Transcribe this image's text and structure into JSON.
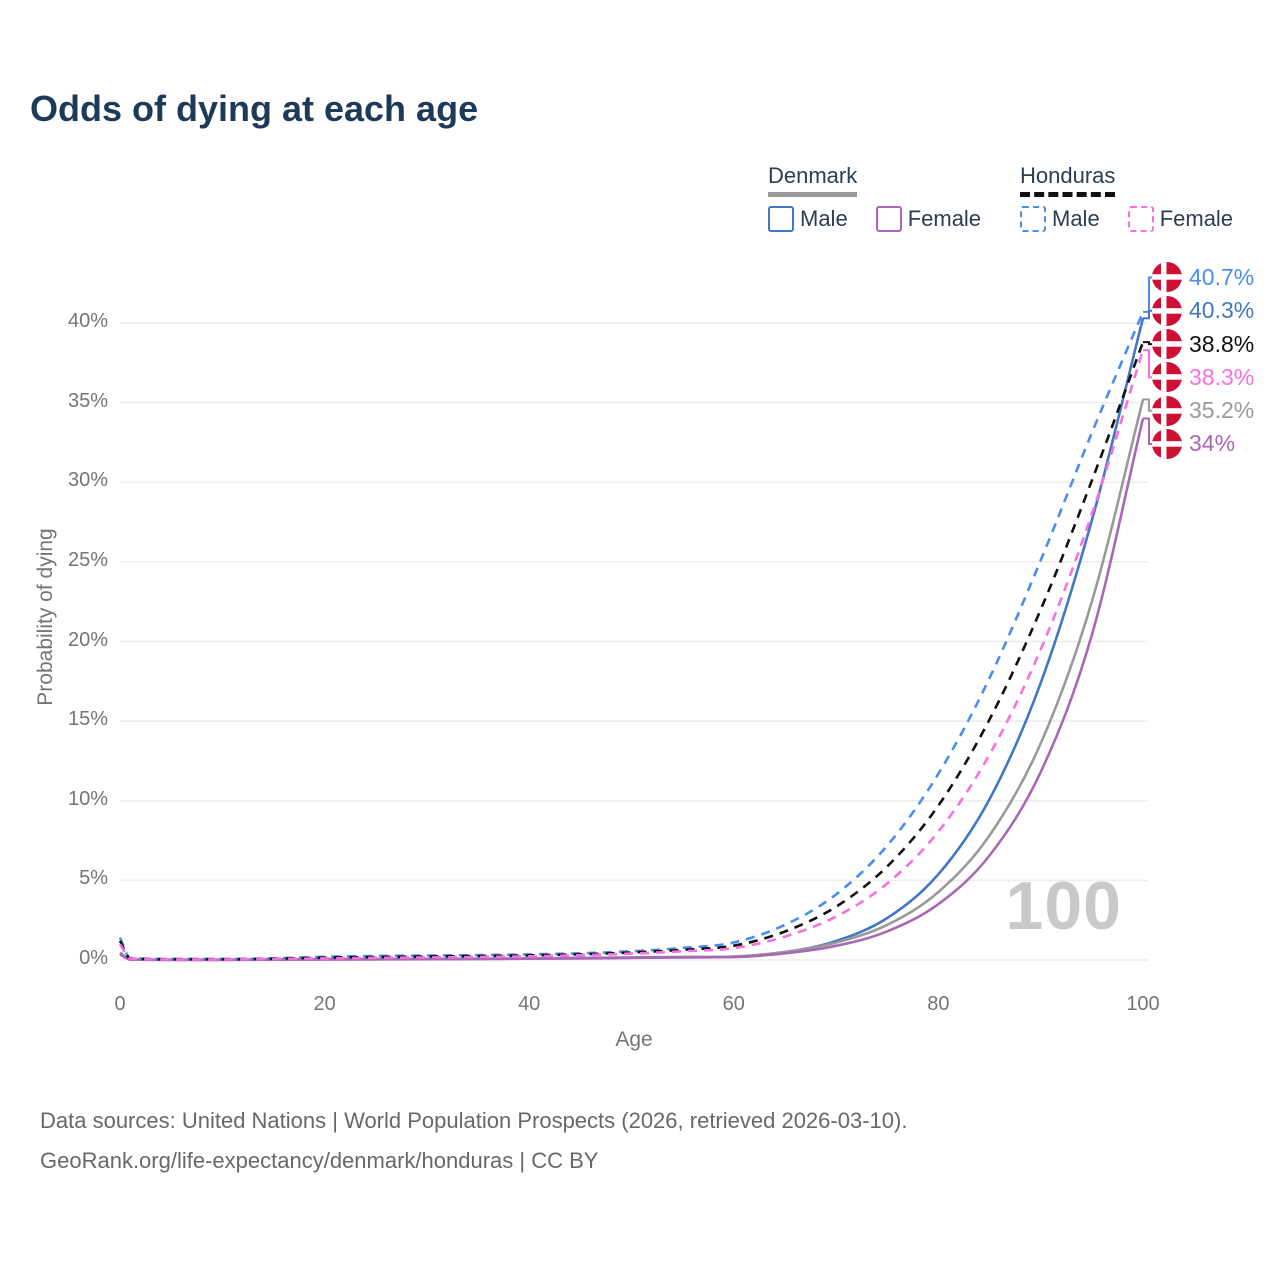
{
  "title": "Odds of dying at each age",
  "legend": {
    "groups": [
      {
        "country": "Denmark",
        "line_style": "solid",
        "underline_color": "#9a9a9a",
        "items": [
          {
            "label": "Male",
            "color": "#4177c6"
          },
          {
            "label": "Female",
            "color": "#aa67b6"
          }
        ]
      },
      {
        "country": "Honduras",
        "line_style": "dashed",
        "underline_color": "#111111",
        "items": [
          {
            "label": "Male",
            "color": "#4a8df2"
          },
          {
            "label": "Female",
            "color": "#fa6fe0"
          }
        ]
      }
    ]
  },
  "chart_data": {
    "type": "line",
    "title": "Odds of dying at each age",
    "xlabel": "Age",
    "ylabel": "Probability of dying",
    "xlim": [
      0,
      100
    ],
    "ylim": [
      0,
      43
    ],
    "grid": "horizontal",
    "x_tick_values": [
      0,
      20,
      40,
      60,
      80,
      100
    ],
    "x_tick_labels": [
      "0",
      "20",
      "40",
      "60",
      "80",
      "100"
    ],
    "y_tick_values": [
      0,
      5,
      10,
      15,
      20,
      25,
      30,
      35,
      40
    ],
    "y_tick_labels": [
      "0%",
      "5%",
      "10%",
      "15%",
      "20%",
      "25%",
      "30%",
      "35%",
      "40%"
    ],
    "watermark": "100",
    "x": [
      0,
      1,
      5,
      10,
      15,
      20,
      25,
      30,
      35,
      40,
      45,
      50,
      55,
      60,
      65,
      70,
      75,
      80,
      85,
      90,
      95,
      100
    ],
    "series": [
      {
        "name": "Honduras male",
        "country": "Honduras",
        "sex": "male",
        "flag": "honduras",
        "color": "#4a8df2",
        "dashed": true,
        "end_label": "40.7%",
        "values": [
          1.4,
          0.12,
          0.06,
          0.06,
          0.1,
          0.2,
          0.25,
          0.28,
          0.31,
          0.35,
          0.42,
          0.55,
          0.76,
          1.1,
          2.21,
          4.12,
          7.19,
          11.7,
          17.7,
          25.1,
          33.1,
          40.7
        ]
      },
      {
        "name": "Denmark male",
        "country": "Denmark",
        "sex": "male",
        "flag": "denmark",
        "color": "#4177c6",
        "dashed": false,
        "end_label": "40.3%",
        "values": [
          0.45,
          0.04,
          0.01,
          0.01,
          0.03,
          0.05,
          0.06,
          0.07,
          0.08,
          0.1,
          0.13,
          0.16,
          0.18,
          0.19,
          0.49,
          1.19,
          2.64,
          5.39,
          10.1,
          17.4,
          27.6,
          40.3
        ]
      },
      {
        "name": "Honduras both sexes",
        "country": "Honduras",
        "sex": "both",
        "flag": "honduras",
        "color": "#111111",
        "dashed": true,
        "end_label": "38.8%",
        "values": [
          1.2,
          0.1,
          0.05,
          0.05,
          0.08,
          0.15,
          0.19,
          0.22,
          0.25,
          0.29,
          0.36,
          0.47,
          0.64,
          0.9,
          1.79,
          3.35,
          5.88,
          9.7,
          15.1,
          22.0,
          30.1,
          38.8
        ]
      },
      {
        "name": "Honduras female",
        "country": "Honduras",
        "sex": "female",
        "flag": "honduras",
        "color": "#fa6fe0",
        "dashed": true,
        "end_label": "38.3%",
        "values": [
          1.0,
          0.09,
          0.04,
          0.04,
          0.06,
          0.1,
          0.13,
          0.16,
          0.19,
          0.23,
          0.3,
          0.4,
          0.55,
          0.75,
          1.47,
          2.73,
          4.81,
          8.07,
          12.9,
          19.5,
          28.0,
          38.3
        ]
      },
      {
        "name": "Denmark both sexes",
        "country": "Denmark",
        "sex": "both",
        "flag": "denmark",
        "color": "#9a9a9a",
        "dashed": false,
        "end_label": "35.2%",
        "values": [
          0.4,
          0.04,
          0.01,
          0.01,
          0.02,
          0.04,
          0.05,
          0.06,
          0.07,
          0.09,
          0.12,
          0.15,
          0.18,
          0.22,
          0.51,
          1.09,
          2.21,
          4.27,
          7.82,
          13.6,
          22.5,
          35.2
        ]
      },
      {
        "name": "Denmark female",
        "country": "Denmark",
        "sex": "female",
        "flag": "denmark",
        "color": "#aa67b6",
        "dashed": false,
        "end_label": "34%",
        "values": [
          0.35,
          0.03,
          0.01,
          0.01,
          0.02,
          0.03,
          0.04,
          0.05,
          0.06,
          0.08,
          0.1,
          0.13,
          0.16,
          0.19,
          0.42,
          0.89,
          1.8,
          3.51,
          6.56,
          11.8,
          20.4,
          34.0
        ]
      }
    ],
    "flag_colors": {
      "honduras_blue": "#3c8ce0",
      "honduras_white": "#f2f2f2",
      "denmark_red": "#cd1034",
      "denmark_white": "#ffffff"
    }
  },
  "footer": {
    "line1": "Data sources: United Nations | World Population Prospects (2026, retrieved 2026-03-10).",
    "line2": "GeoRank.org/life-expectancy/denmark/honduras | CC BY"
  }
}
